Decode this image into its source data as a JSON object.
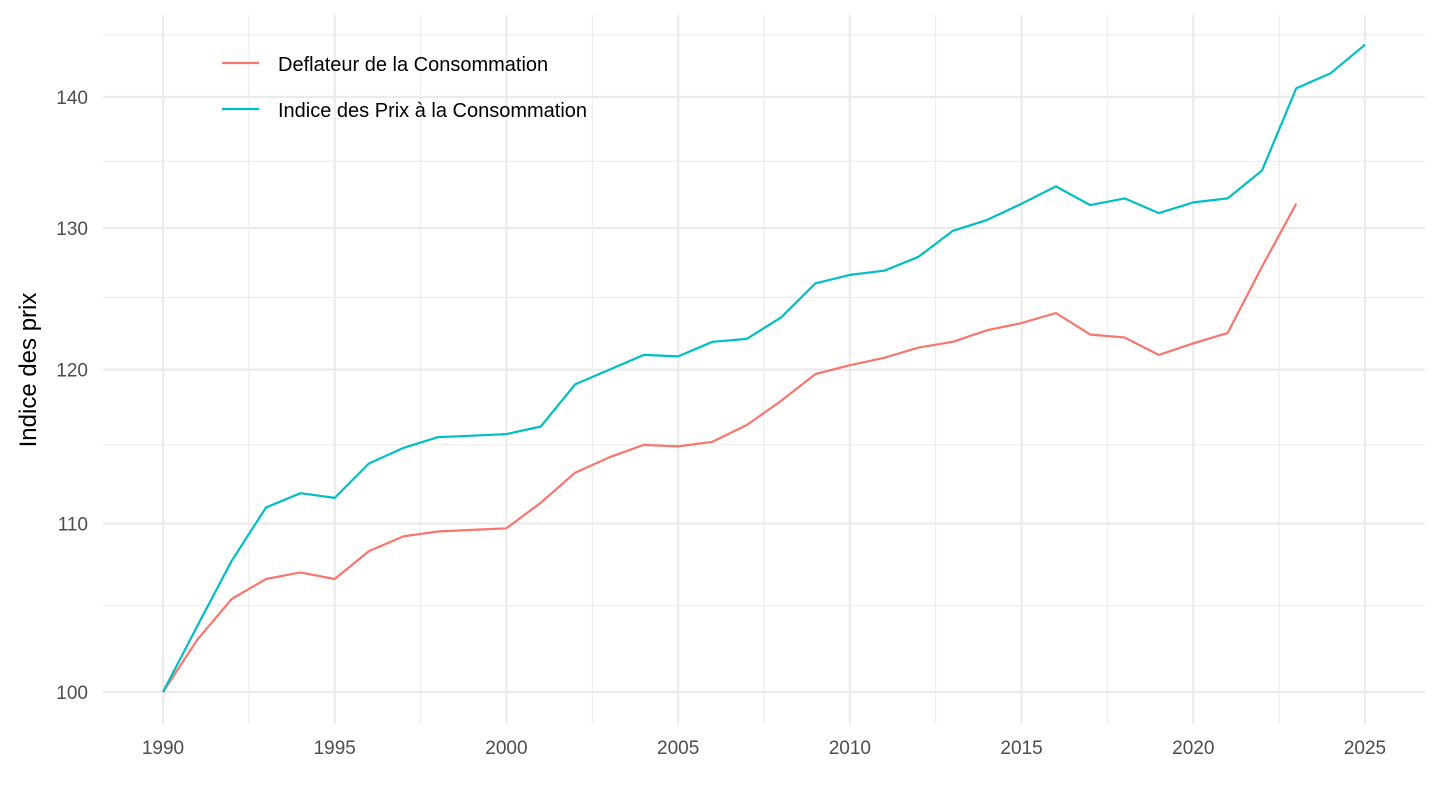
{
  "chart_data": {
    "type": "line",
    "title": "",
    "xlabel": "",
    "ylabel": "Indice des prix",
    "y_scale": "log",
    "xlim": [
      1987.3,
      2026.6
    ],
    "ylim": [
      98.2,
      146.6
    ],
    "x_ticks": [
      1990,
      1995,
      2000,
      2005,
      2010,
      2015,
      2020,
      2025
    ],
    "x_tick_labels": [
      "1990",
      "1995",
      "2000",
      "2005",
      "2010",
      "2015",
      "2020",
      "2025"
    ],
    "x_minor_ticks": [
      1992.5,
      1997.5,
      2002.5,
      2007.5,
      2012.5,
      2017.5,
      2022.5
    ],
    "y_ticks": [
      100,
      110,
      120,
      130,
      140
    ],
    "y_tick_labels": [
      "100",
      "110",
      "120",
      "130",
      "140"
    ],
    "y_minor_ticks": [
      105,
      115,
      125,
      135,
      145
    ],
    "grid": true,
    "legend_position": "top-left, inside",
    "series": [
      {
        "name": "Deflateur de la Consommation",
        "color": "#F8766D",
        "x": [
          1990,
          1991,
          1992,
          1993,
          1994,
          1995,
          1996,
          1997,
          1998,
          1999,
          2000,
          2001,
          2002,
          2003,
          2004,
          2005,
          2006,
          2007,
          2008,
          2009,
          2010,
          2011,
          2012,
          2013,
          2014,
          2015,
          2016,
          2017,
          2018,
          2019,
          2020,
          2021,
          2022,
          2023
        ],
        "values": [
          100.0,
          103.0,
          105.4,
          106.6,
          107.0,
          106.6,
          108.3,
          109.2,
          109.5,
          109.6,
          109.7,
          111.3,
          113.2,
          114.2,
          115.0,
          114.9,
          115.2,
          116.3,
          117.9,
          119.7,
          120.3,
          120.8,
          121.5,
          121.9,
          122.7,
          123.2,
          123.9,
          122.4,
          122.2,
          121.0,
          121.8,
          122.5,
          127.2,
          131.8
        ]
      },
      {
        "name": "Indice des Prix à la Consommation",
        "color": "#00BFC4",
        "x": [
          1990,
          1991,
          1992,
          1993,
          1994,
          1995,
          1996,
          1997,
          1998,
          1999,
          2000,
          2001,
          2002,
          2003,
          2004,
          2005,
          2006,
          2007,
          2008,
          2009,
          2010,
          2011,
          2012,
          2013,
          2014,
          2015,
          2016,
          2017,
          2018,
          2019,
          2020,
          2021,
          2022,
          2023,
          2024,
          2025
        ],
        "values": [
          100.0,
          103.8,
          107.7,
          111.0,
          111.9,
          111.6,
          113.8,
          114.8,
          115.5,
          115.6,
          115.7,
          116.2,
          119.0,
          120.0,
          121.0,
          120.9,
          121.9,
          122.1,
          123.6,
          126.0,
          126.6,
          126.9,
          127.9,
          129.8,
          130.6,
          131.8,
          133.1,
          131.7,
          132.2,
          131.1,
          131.9,
          132.2,
          134.3,
          140.7,
          141.9,
          144.2
        ]
      }
    ]
  }
}
